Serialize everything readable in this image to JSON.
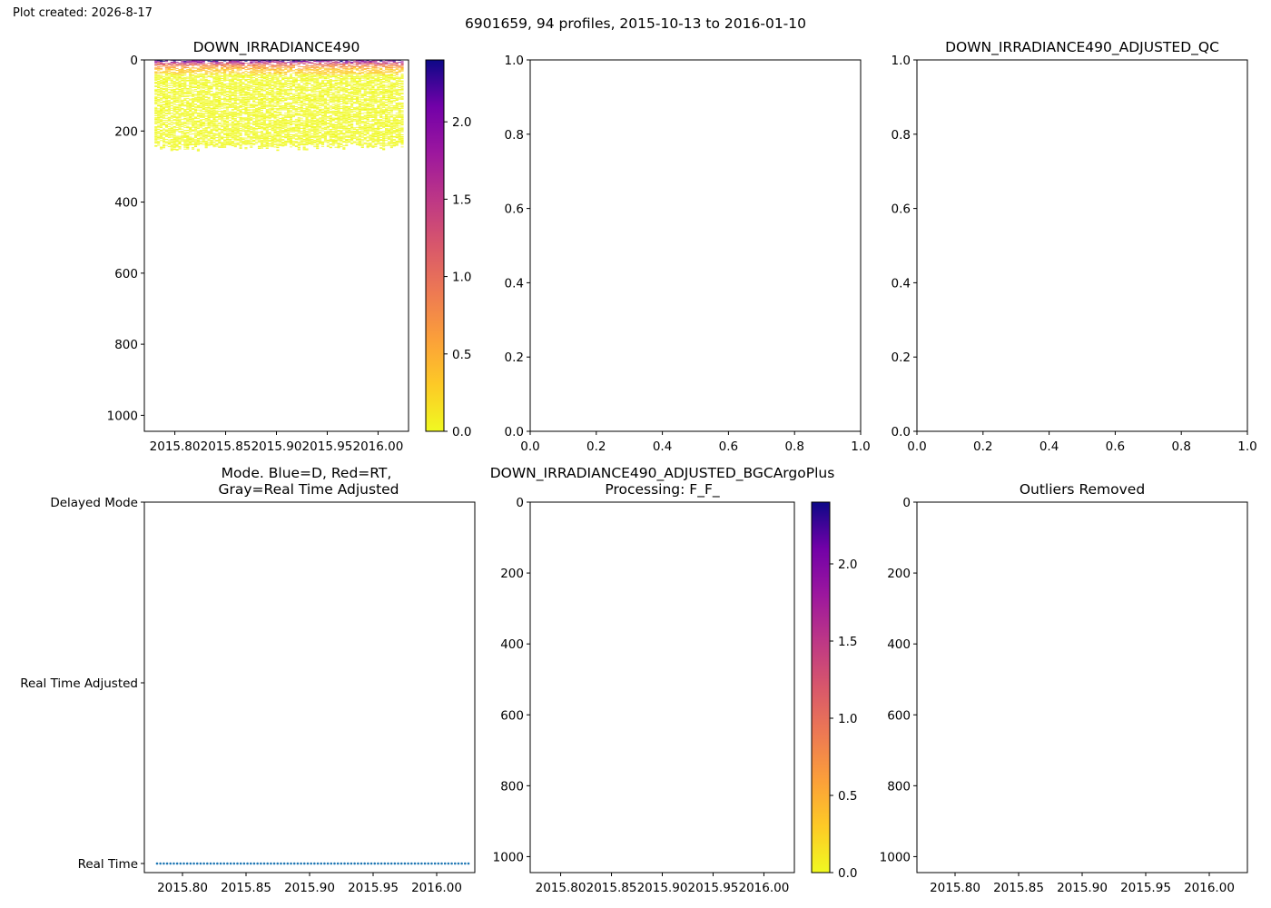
{
  "header": {
    "created": "Plot created: 2026-8-17",
    "suptitle": "6901659, 94 profiles, 2015-10-13 to 2016-01-10"
  },
  "chart_data": [
    {
      "id": "p1",
      "type": "heatmap",
      "title": "DOWN_IRRADIANCE490",
      "xlim": [
        2015.77,
        2016.03
      ],
      "ylim": [
        1045,
        0
      ],
      "xticks": [
        2015.8,
        2015.85,
        2015.9,
        2015.95,
        2016.0
      ],
      "xtick_labels": [
        "2015.80",
        "2015.85",
        "2015.90",
        "2015.95",
        "2016.00"
      ],
      "yticks": [
        0,
        200,
        400,
        600,
        800,
        1000
      ],
      "ytick_labels": [
        "0",
        "200",
        "400",
        "600",
        "800",
        "1000"
      ],
      "data_extent": {
        "x": [
          2015.78,
          2016.025
        ],
        "depth": [
          0,
          255
        ]
      },
      "colormap": "plasma_r",
      "colorbar": {
        "range": [
          0,
          2.4
        ],
        "ticks": [
          0,
          0.5,
          1.0,
          1.5,
          2.0
        ],
        "tick_labels": [
          "0.0",
          "0.5",
          "1.0",
          "1.5",
          "2.0"
        ]
      }
    },
    {
      "id": "p2",
      "type": "scatter",
      "title": "",
      "xlim": [
        0,
        1
      ],
      "ylim": [
        0,
        1
      ],
      "xticks": [
        0,
        0.2,
        0.4,
        0.6,
        0.8,
        1.0
      ],
      "xtick_labels": [
        "0.0",
        "0.2",
        "0.4",
        "0.6",
        "0.8",
        "1.0"
      ],
      "yticks": [
        0,
        0.2,
        0.4,
        0.6,
        0.8,
        1.0
      ],
      "ytick_labels": [
        "0.0",
        "0.2",
        "0.4",
        "0.6",
        "0.8",
        "1.0"
      ]
    },
    {
      "id": "p3",
      "type": "scatter",
      "title": "DOWN_IRRADIANCE490_ADJUSTED_QC",
      "xlim": [
        0,
        1
      ],
      "ylim": [
        0,
        1
      ],
      "xticks": [
        0,
        0.2,
        0.4,
        0.6,
        0.8,
        1.0
      ],
      "xtick_labels": [
        "0.0",
        "0.2",
        "0.4",
        "0.6",
        "0.8",
        "1.0"
      ],
      "yticks": [
        0,
        0.2,
        0.4,
        0.6,
        0.8,
        1.0
      ],
      "ytick_labels": [
        "0.0",
        "0.2",
        "0.4",
        "0.6",
        "0.8",
        "1.0"
      ]
    },
    {
      "id": "p4",
      "type": "scatter",
      "title_lines": [
        "Mode. Blue=D, Red=RT,",
        "Gray=Real Time Adjusted"
      ],
      "xlim": [
        2015.77,
        2016.03
      ],
      "xticks": [
        2015.8,
        2015.85,
        2015.9,
        2015.95,
        2016.0
      ],
      "xtick_labels": [
        "2015.80",
        "2015.85",
        "2015.90",
        "2015.95",
        "2016.00"
      ],
      "categories": [
        "Real Time",
        "Real Time Adjusted",
        "Delayed Mode"
      ],
      "series": [
        {
          "category": "Real Time",
          "n_points": 94,
          "x_start": 2015.78,
          "x_end": 2016.025,
          "color": "#1f77b4"
        }
      ]
    },
    {
      "id": "p5",
      "type": "heatmap",
      "title_lines": [
        "DOWN_IRRADIANCE490_ADJUSTED_BGCArgoPlus",
        "Processing: F_F_"
      ],
      "xlim": [
        2015.77,
        2016.03
      ],
      "ylim": [
        1045,
        0
      ],
      "xticks": [
        2015.8,
        2015.85,
        2015.9,
        2015.95,
        2016.0
      ],
      "xtick_labels": [
        "2015.80",
        "2015.85",
        "2015.90",
        "2015.95",
        "2016.00"
      ],
      "yticks": [
        0,
        200,
        400,
        600,
        800,
        1000
      ],
      "ytick_labels": [
        "0",
        "200",
        "400",
        "600",
        "800",
        "1000"
      ],
      "colormap": "plasma_r",
      "colorbar": {
        "range": [
          0,
          2.4
        ],
        "ticks": [
          0,
          0.5,
          1.0,
          1.5,
          2.0
        ],
        "tick_labels": [
          "0.0",
          "0.5",
          "1.0",
          "1.5",
          "2.0"
        ]
      }
    },
    {
      "id": "p6",
      "type": "heatmap",
      "title": "Outliers Removed",
      "xlim": [
        2015.77,
        2016.03
      ],
      "ylim": [
        1045,
        0
      ],
      "xticks": [
        2015.8,
        2015.85,
        2015.9,
        2015.95,
        2016.0
      ],
      "xtick_labels": [
        "2015.80",
        "2015.85",
        "2015.90",
        "2015.95",
        "2016.00"
      ],
      "yticks": [
        0,
        200,
        400,
        600,
        800,
        1000
      ],
      "ytick_labels": [
        "0",
        "200",
        "400",
        "600",
        "800",
        "1000"
      ]
    }
  ]
}
